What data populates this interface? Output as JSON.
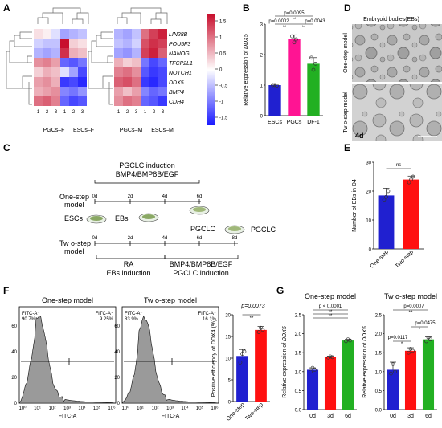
{
  "panel_letters": {
    "a": "A",
    "b": "B",
    "c": "C",
    "d": "D",
    "e": "E",
    "f": "F",
    "g": "G"
  },
  "panelA": {
    "genes": [
      "LIN28B",
      "POU5F3",
      "NANOG",
      "TFCP2L1",
      "NOTCH1",
      "DDX5",
      "BMP4",
      "CDH4"
    ],
    "left": {
      "cols": [
        "1",
        "2",
        "3",
        "1",
        "2",
        "3"
      ],
      "groups": [
        "PGCs–F",
        "ESCs–F"
      ]
    },
    "right": {
      "cols": [
        "1",
        "2",
        "3",
        "1",
        "2",
        "3"
      ],
      "groups": [
        "PGCs–M",
        "ESCs–M"
      ]
    },
    "colorbar_ticks": [
      "1.5",
      "1",
      "0.5",
      "0",
      "-0.5",
      "-1",
      "-1.5"
    ],
    "colors": {
      "high": "#c8102e",
      "mid": "#ffffff",
      "low": "#1a1aff"
    },
    "left_matrix": [
      [
        0.2,
        0.1,
        -0.2,
        -0.6,
        -0.5,
        -0.4
      ],
      [
        -0.3,
        -0.4,
        -0.4,
        1.5,
        0.3,
        0.2
      ],
      [
        -0.5,
        -0.6,
        -0.5,
        1.3,
        0.5,
        0.4
      ],
      [
        0.7,
        0.8,
        0.6,
        -1.0,
        -1.1,
        -0.9
      ],
      [
        0.3,
        0.5,
        0.4,
        -0.2,
        -0.6,
        -1.2
      ],
      [
        0.6,
        0.7,
        0.5,
        -1.3,
        -1.2,
        -1.4
      ],
      [
        0.5,
        0.6,
        0.7,
        -0.8,
        -0.9,
        -0.7
      ],
      [
        0.9,
        1.0,
        0.8,
        -1.0,
        -1.2,
        -1.1
      ]
    ],
    "right_matrix": [
      [
        -0.5,
        -0.6,
        -0.4,
        0.9,
        1.2,
        1.4
      ],
      [
        -0.4,
        -0.5,
        -0.3,
        1.1,
        1.3,
        1.2
      ],
      [
        -0.6,
        -0.7,
        -0.5,
        1.2,
        1.4,
        1.0
      ],
      [
        0.5,
        0.3,
        0.4,
        -0.9,
        -1.2,
        -1.0
      ],
      [
        0.8,
        0.9,
        0.7,
        -1.1,
        -1.3,
        -1.2
      ],
      [
        1.0,
        1.1,
        0.9,
        -1.3,
        -1.4,
        -1.2
      ],
      [
        0.6,
        0.4,
        0.6,
        -0.8,
        -1.0,
        -0.9
      ],
      [
        0.7,
        0.9,
        0.8,
        -1.0,
        -1.1,
        -1.3
      ]
    ]
  },
  "chart_data": [
    {
      "panel": "B",
      "type": "bar",
      "categories": [
        "ESCs",
        "PGCs",
        "DF-1"
      ],
      "values": [
        1.0,
        2.5,
        1.7
      ],
      "errors": [
        0.03,
        0.15,
        0.2
      ],
      "points": [
        [
          1.0,
          1.0,
          0.98
        ],
        [
          2.6,
          2.4,
          2.5
        ],
        [
          1.9,
          1.5,
          1.7
        ]
      ],
      "colors": [
        "#2020d0",
        "#ff1493",
        "#22b022"
      ],
      "ylabel_prefix": "Relative expression of ",
      "ylabel_gene": "DDX5",
      "ylim": [
        0,
        3
      ],
      "yticks": [
        "0",
        "1",
        "2",
        "3"
      ],
      "annotations": [
        "p=0.0095",
        "**",
        "p=0.0002",
        "**",
        "p=0.0043",
        "**"
      ]
    },
    {
      "panel": "E",
      "type": "bar",
      "categories": [
        "One-step",
        "Two-step"
      ],
      "values": [
        18.5,
        24
      ],
      "errors": [
        2.5,
        1.2
      ],
      "points": [
        [
          17,
          18,
          20
        ],
        [
          23,
          24,
          25
        ]
      ],
      "colors": [
        "#2020d0",
        "#ff1010"
      ],
      "ylabel": "Number of EBs in D4",
      "ylim": [
        0,
        30
      ],
      "yticks": [
        "0",
        "10",
        "20",
        "30"
      ],
      "annotations": [
        "ns"
      ]
    },
    {
      "panel": "F-bar",
      "type": "bar",
      "categories": [
        "One-step",
        "Two-step"
      ],
      "values": [
        10.5,
        16.5
      ],
      "errors": [
        1.5,
        0.8
      ],
      "points": [
        [
          9,
          11,
          11.5
        ],
        [
          16,
          17,
          16.5
        ]
      ],
      "colors": [
        "#2020d0",
        "#ff1010"
      ],
      "ylabel": "Positive efficiency of DDX4 (%)",
      "ylim": [
        0,
        20
      ],
      "yticks": [
        "0",
        "5",
        "10",
        "15",
        "20"
      ],
      "annotations": [
        "p=0.0073",
        "**"
      ]
    },
    {
      "panel": "G-left",
      "type": "bar",
      "title": "One-step model",
      "categories": [
        "0d",
        "3d",
        "6d"
      ],
      "values": [
        1.05,
        1.38,
        1.82
      ],
      "errors": [
        0.05,
        0.03,
        0.03
      ],
      "points": [
        [
          1.0,
          1.1,
          1.05
        ],
        [
          1.37,
          1.4,
          1.38
        ],
        [
          1.8,
          1.85,
          1.82
        ]
      ],
      "colors": [
        "#2020d0",
        "#ff1010",
        "#22b022"
      ],
      "tickcolors": [
        "#000000",
        "#c00000",
        "#008000"
      ],
      "ylabel_prefix": "Relative expression of ",
      "ylabel_gene": "DDX5",
      "ylim": [
        0,
        2.5
      ],
      "yticks": [
        "0.0",
        "0.5",
        "1.0",
        "1.5",
        "2.0",
        "2.5"
      ],
      "annotations": [
        "p < 0.0001",
        "**",
        "**"
      ]
    },
    {
      "panel": "G-right",
      "type": "bar",
      "title": "Tw o-step model",
      "categories": [
        "0d",
        "3d",
        "6d"
      ],
      "values": [
        1.05,
        1.55,
        1.85
      ],
      "errors": [
        0.2,
        0.08,
        0.07
      ],
      "points": [
        [
          0.95,
          1.2,
          1.0
        ],
        [
          1.5,
          1.6,
          1.55
        ],
        [
          1.8,
          1.9,
          1.85
        ]
      ],
      "colors": [
        "#2020d0",
        "#ff1010",
        "#22b022"
      ],
      "tickcolors": [
        "#000000",
        "#c00000",
        "#008000"
      ],
      "ylabel_prefix": "Relative expression of ",
      "ylabel_gene": "DDX5",
      "ylim": [
        0,
        2.5
      ],
      "yticks": [
        "0.0",
        "0.5",
        "1.0",
        "1.5",
        "2.0",
        "2.5"
      ],
      "annotations": [
        "p=0.0007",
        "**",
        "p=0.0475",
        "*",
        "p=0.0117",
        "*"
      ]
    }
  ],
  "panelC": {
    "top_title": "PGCLC induction",
    "top_factors": "BMP4/BMP8B/EGF",
    "model1": "One-step",
    "model1b": "model",
    "model2": "Tw o-step",
    "model2b": "model",
    "esc": "ESCs",
    "ebs": "EBs",
    "pgclc1": "PGCLC",
    "pgclc2": "PGCLC",
    "days1": [
      "0d",
      "2d",
      "4d",
      "6d"
    ],
    "days2": [
      "0d",
      "2d",
      "4d",
      "6d",
      "8d"
    ],
    "ra": "RA",
    "ebs_induction": "EBs induction",
    "bottom_factors": "BMP4/BMP8B/EGF",
    "bottom_title": "PGCLC induction"
  },
  "panelD": {
    "title": "Embryoid bodies(EBs)",
    "model1": "One-step model",
    "model2": "Tw o-step model",
    "day": "4d"
  },
  "panelF": {
    "titles": [
      "One-step model",
      "Tw o-step model"
    ],
    "gate_left_1": "FITC-A⁻",
    "gate_left_v1": "90.7%",
    "gate_right_1": "FITC-A⁺",
    "gate_right_v1": "9.25%",
    "gate_left_2": "FITC-A⁻",
    "gate_left_v2": "83.9%",
    "gate_right_2": "FITC-A⁺",
    "gate_right_v2": "16.1%",
    "xlabel": "FITC-A",
    "ylabel": "Count",
    "yticks": [
      "0",
      "20",
      "40",
      "60"
    ],
    "xticks": [
      "10⁰",
      "10¹",
      "10²",
      "10³",
      "10⁴",
      "10⁵",
      "10⁶"
    ]
  }
}
